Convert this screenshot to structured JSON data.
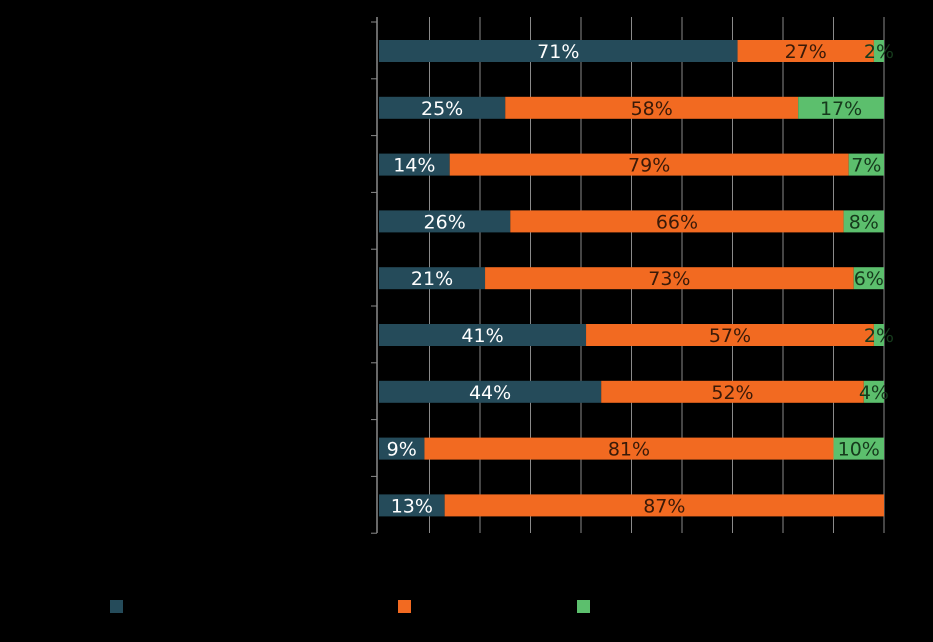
{
  "chart_data": {
    "type": "bar",
    "orientation": "horizontal",
    "stacked": true,
    "xlim": [
      0,
      100
    ],
    "grid": true,
    "legend_position": "bottom",
    "categories": [
      "",
      "",
      "",
      "",
      "",
      "",
      "",
      "",
      ""
    ],
    "series": [
      {
        "name": "",
        "color": "#254B5A",
        "text_color": "#FFFFFF",
        "values": [
          71,
          25,
          14,
          26,
          21,
          41,
          44,
          9,
          13
        ],
        "labels": [
          "71%",
          "25%",
          "14%",
          "26%",
          "21%",
          "41%",
          "44%",
          "9%",
          "13%"
        ]
      },
      {
        "name": "",
        "color": "#F26A21",
        "text_color": "#3A1A08",
        "values": [
          27,
          58,
          79,
          66,
          73,
          57,
          52,
          81,
          87
        ],
        "labels": [
          "27%",
          "58%",
          "79%",
          "66%",
          "73%",
          "57%",
          "52%",
          "81%",
          "87%"
        ]
      },
      {
        "name": "",
        "color": "#5CBF6D",
        "text_color": "#163A1C",
        "values": [
          2,
          17,
          7,
          8,
          6,
          2,
          4,
          10,
          0
        ],
        "labels": [
          "2%",
          "17%",
          "7%",
          "8%",
          "6%",
          "2%",
          "4%",
          "10%",
          ""
        ]
      }
    ]
  }
}
